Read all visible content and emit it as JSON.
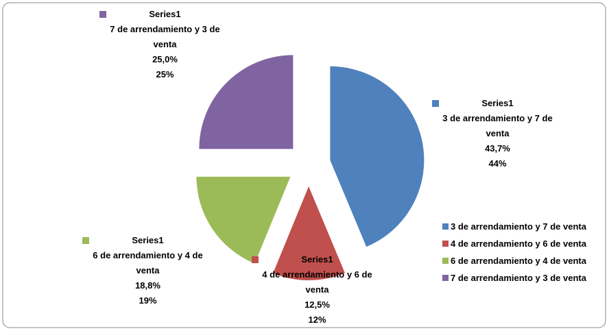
{
  "chart_data": {
    "type": "pie",
    "series_name": "Series1",
    "categories": [
      "3 de arrendamiento y 7 de venta",
      "4 de arrendamiento y 6 de venta",
      "6 de arrendamiento y 4 de venta",
      "7 de arrendamiento y 3 de venta"
    ],
    "values": [
      43.7,
      12.5,
      18.8,
      25.0
    ],
    "value_labels": [
      "43,7%",
      "12,5%",
      "18,8%",
      "25,0%"
    ],
    "percent_labels": [
      "44%",
      "12%",
      "19%",
      "25%"
    ],
    "colors": [
      "#4f81bd",
      "#c0504d",
      "#9bbb59",
      "#8064a2"
    ],
    "legend": "right"
  }
}
